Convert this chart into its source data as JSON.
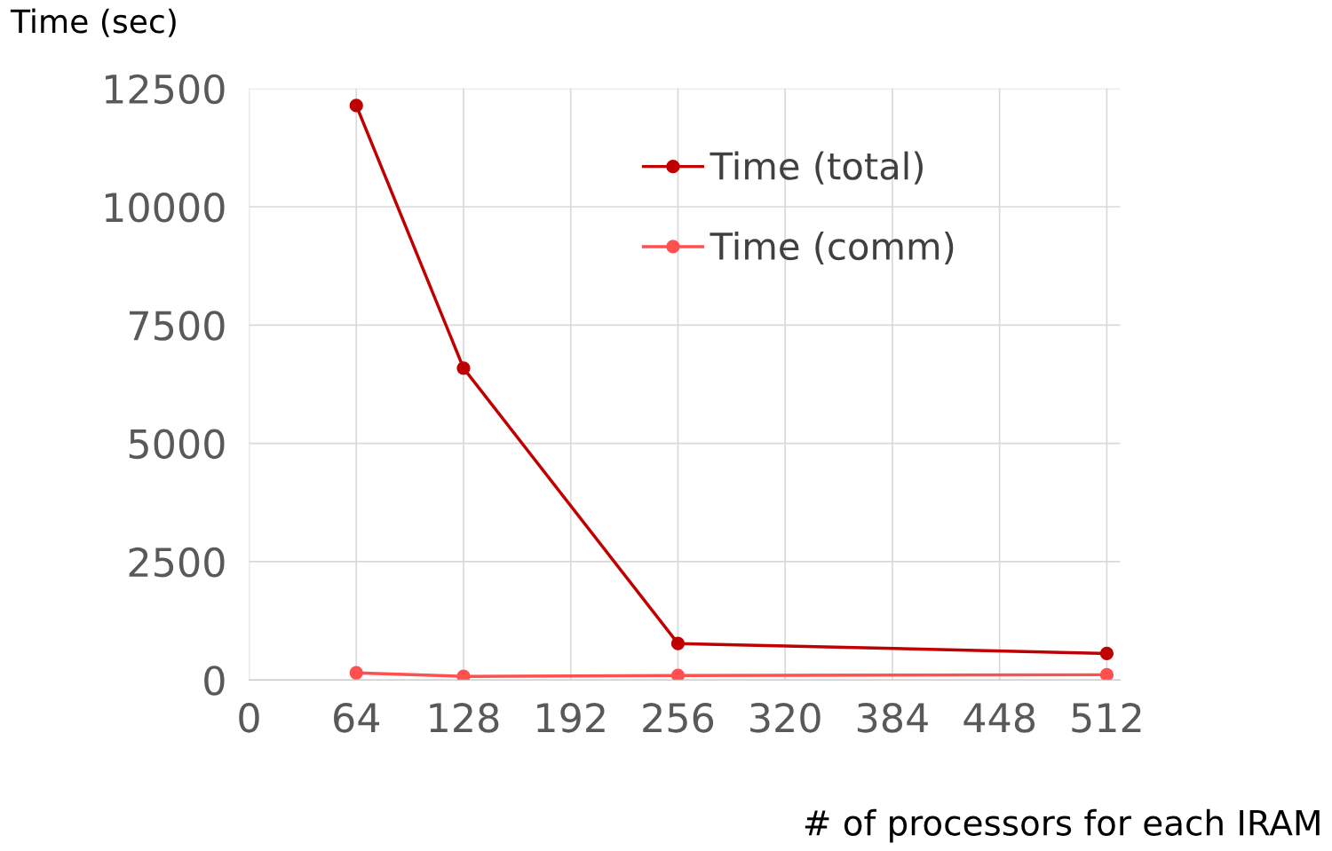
{
  "chart_data": {
    "type": "line",
    "xlabel": "# of processors for each IRAM",
    "ylabel": "Time (sec)",
    "x": [
      64,
      128,
      256,
      512
    ],
    "series": [
      {
        "name": "Time (total)",
        "color": "#c00000",
        "values": [
          12140,
          6590,
          770,
          560
        ]
      },
      {
        "name": "Time (comm)",
        "color": "#ff5050",
        "values": [
          150,
          75,
          95,
          110
        ]
      }
    ],
    "xlim": [
      0,
      520
    ],
    "xticks": [
      0,
      64,
      128,
      192,
      256,
      320,
      384,
      448,
      512
    ],
    "ylim": [
      0,
      12500
    ],
    "yticks": [
      0,
      2500,
      5000,
      7500,
      10000,
      12500
    ],
    "grid": true,
    "legend": "top right",
    "marker": "circle",
    "line_style": "solid"
  }
}
